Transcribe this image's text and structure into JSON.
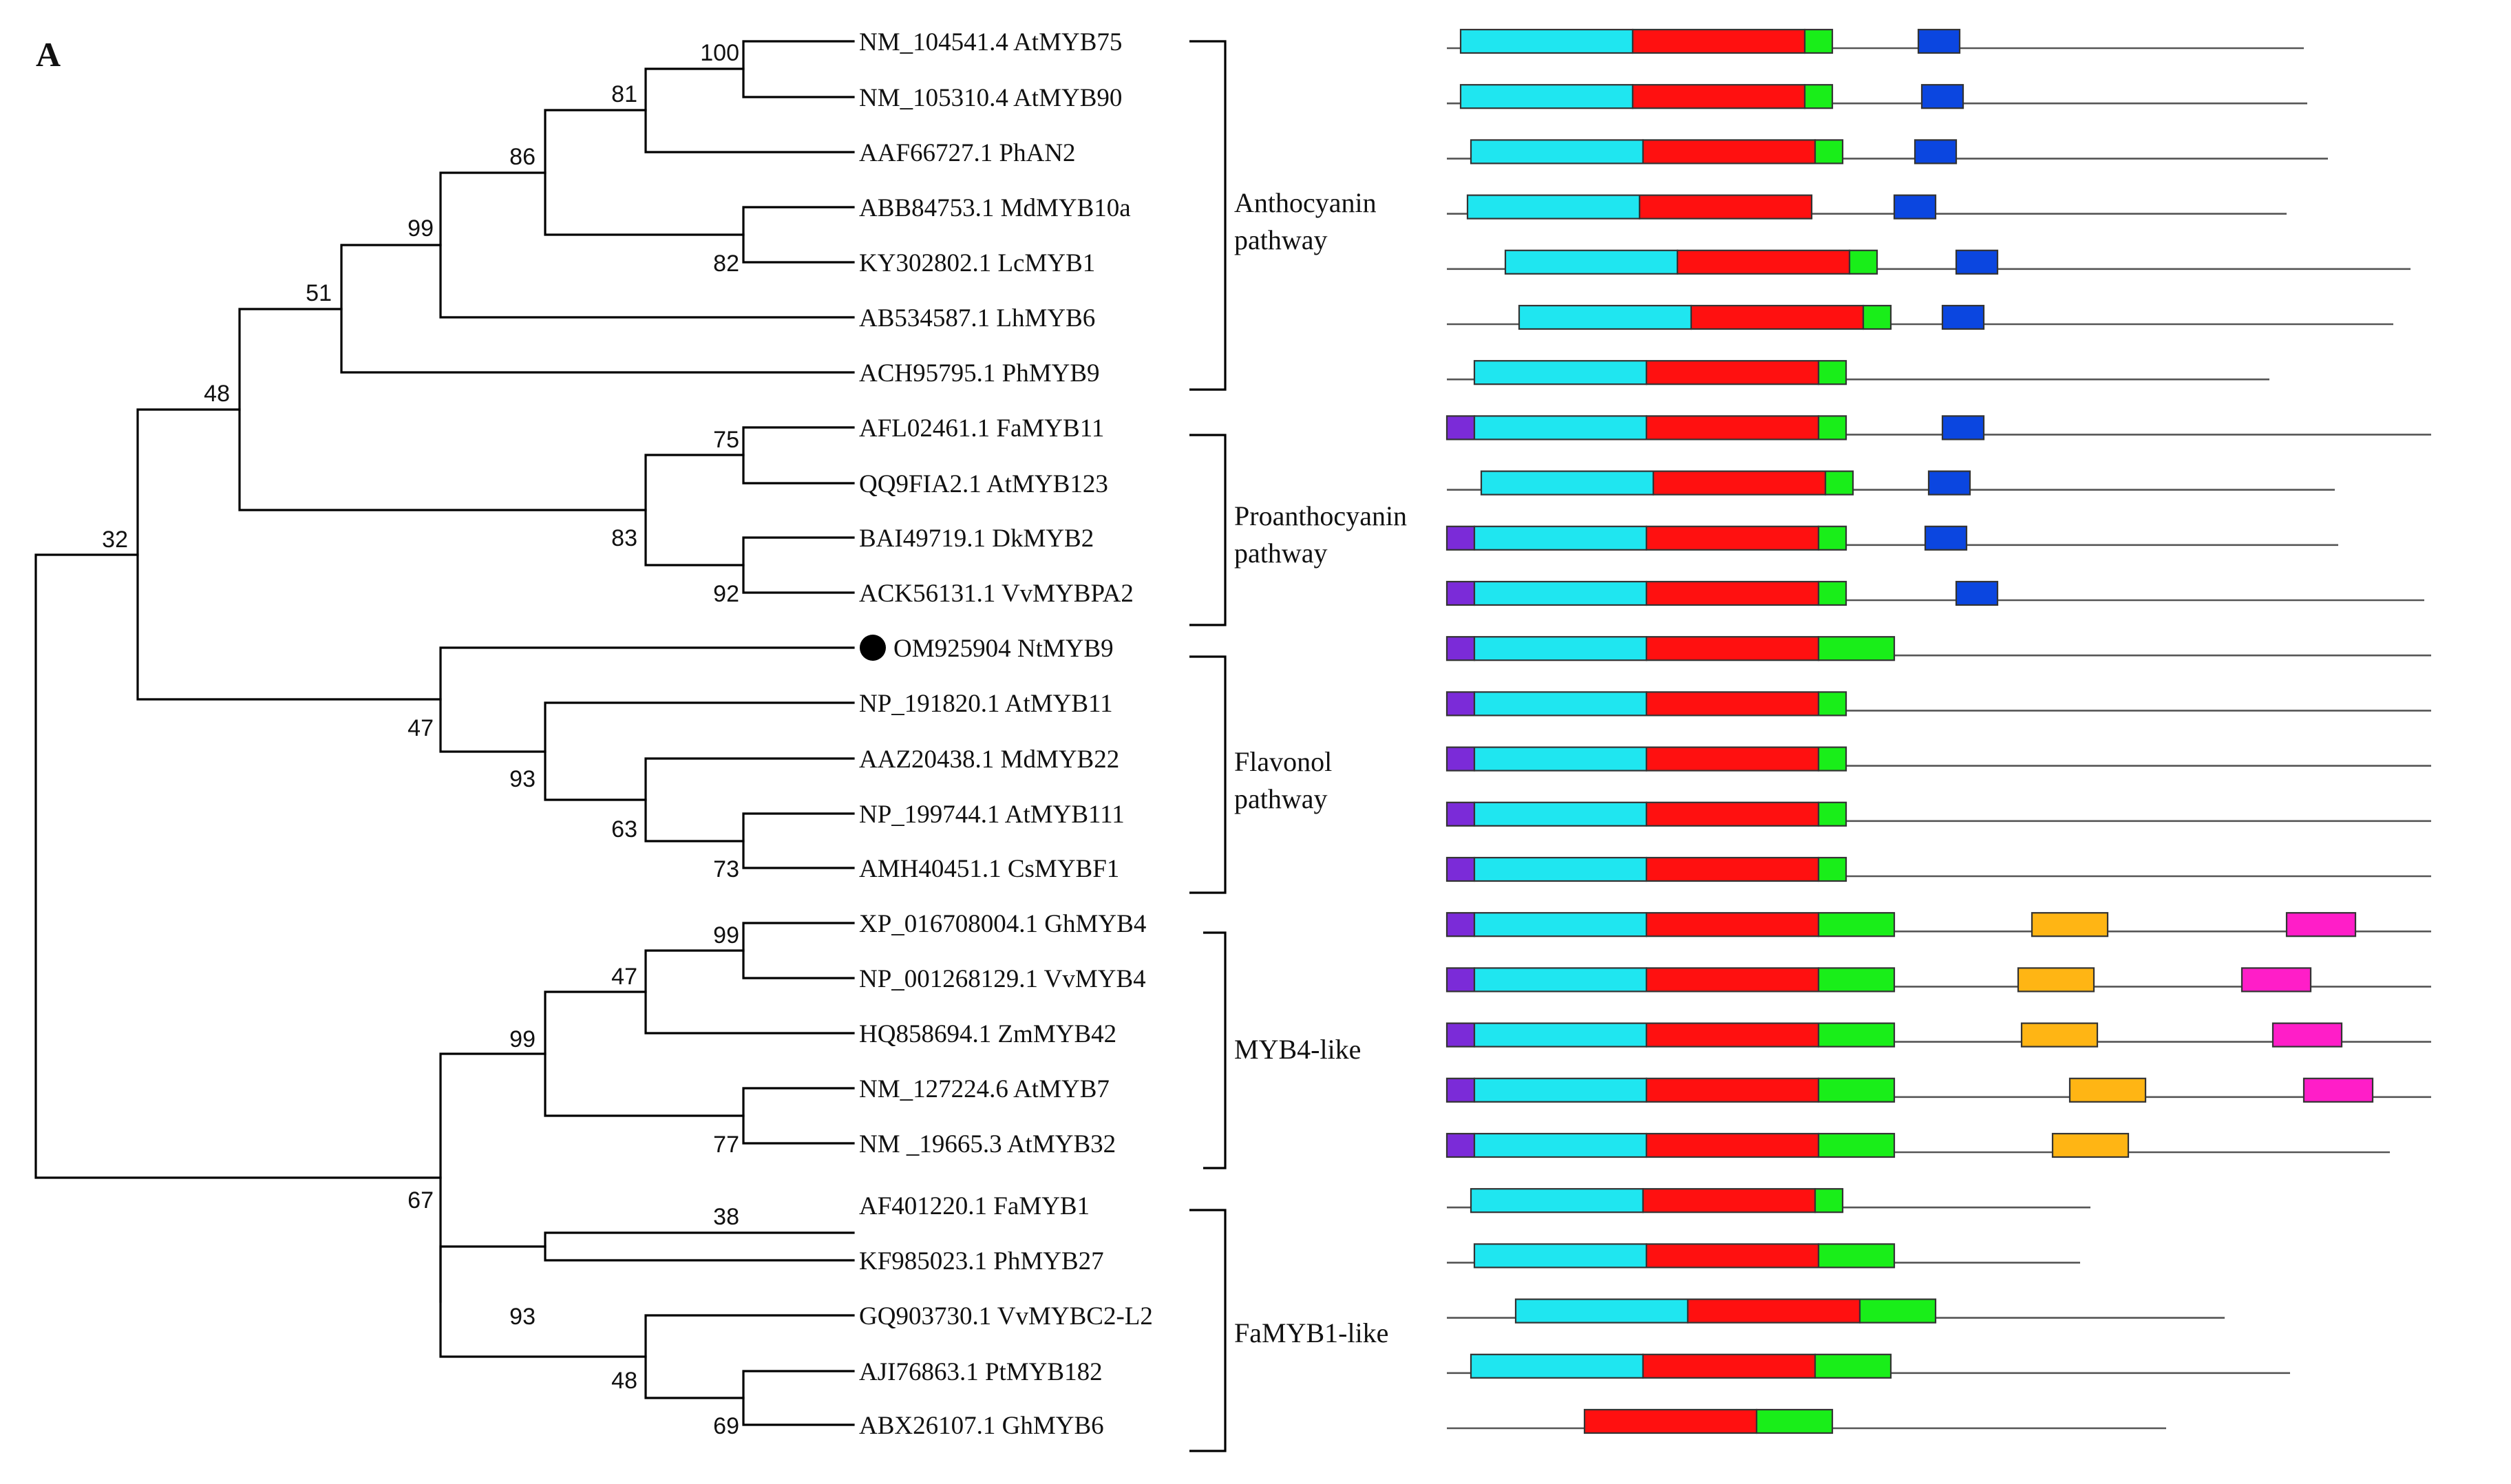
{
  "panel_label": "A",
  "colors": {
    "tree": "#000000",
    "seq_line": "#555555",
    "purple": "#7b2bd8",
    "cyan": "#1fe6f0",
    "red": "#ff1010",
    "green": "#19ee19",
    "blue": "#0b46e0",
    "orange": "#ffb514",
    "magenta": "#ff1ec8",
    "marker": "#000000"
  },
  "leaves": [
    {
      "label": "NM_104541.4 AtMYB75",
      "marker": false
    },
    {
      "label": "NM_105310.4 AtMYB90",
      "marker": false
    },
    {
      "label": "AAF66727.1 PhAN2",
      "marker": false
    },
    {
      "label": "ABB84753.1 MdMYB10a",
      "marker": false
    },
    {
      "label": "KY302802.1 LcMYB1",
      "marker": false
    },
    {
      "label": "AB534587.1 LhMYB6",
      "marker": false
    },
    {
      "label": "ACH95795.1 PhMYB9",
      "marker": false
    },
    {
      "label": "AFL02461.1 FaMYB11",
      "marker": false
    },
    {
      "label": "QQ9FIA2.1 AtMYB123",
      "marker": false
    },
    {
      "label": "BAI49719.1 DkMYB2",
      "marker": false
    },
    {
      "label": "ACK56131.1 VvMYBPA2",
      "marker": false
    },
    {
      "label": "OM925904 NtMYB9",
      "marker": true
    },
    {
      "label": "NP_191820.1 AtMYB11",
      "marker": false
    },
    {
      "label": "AAZ20438.1 MdMYB22",
      "marker": false
    },
    {
      "label": "NP_199744.1 AtMYB111",
      "marker": false
    },
    {
      "label": "AMH40451.1 CsMYBF1",
      "marker": false
    },
    {
      "label": "XP_016708004.1 GhMYB4",
      "marker": false
    },
    {
      "label": "NP_001268129.1 VvMYB4",
      "marker": false
    },
    {
      "label": "HQ858694.1 ZmMYB42",
      "marker": false
    },
    {
      "label": "NM_127224.6 AtMYB7",
      "marker": false
    },
    {
      "label": "NM _19665.3 AtMYB32",
      "marker": false
    },
    {
      "label": "AF401220.1 FaMYB1",
      "marker": false
    },
    {
      "label": "KF985023.1 PhMYB27",
      "marker": false
    },
    {
      "label": "GQ903730.1 VvMYBC2-L2",
      "marker": false
    },
    {
      "label": "AJI76863.1 PtMYB182",
      "marker": false
    },
    {
      "label": "ABX26107.1 GhMYB6",
      "marker": false
    }
  ],
  "bootstrap_values": [
    "100",
    "81",
    "86",
    "82",
    "99",
    "51",
    "48",
    "75",
    "83",
    "92",
    "32",
    "47",
    "93",
    "63",
    "73",
    "99",
    "47",
    "99",
    "77",
    "67",
    "38",
    "93",
    "48",
    "69"
  ],
  "groups": [
    {
      "lines": [
        "Anthocyanin",
        "pathway"
      ]
    },
    {
      "lines": [
        "Proanthocyanin",
        "pathway"
      ]
    },
    {
      "lines": [
        "Flavonol",
        "pathway"
      ]
    },
    {
      "lines": [
        "MYB4-like"
      ]
    },
    {
      "lines": [
        "FaMYB1-like"
      ]
    }
  ],
  "domain_legend_note": "",
  "domains": [
    {
      "name": "NM_104541.4 AtMYB75",
      "seq": [
        0,
        1245
      ],
      "boxes": [
        [
          "cyan",
          20,
          270
        ],
        [
          "red",
          270,
          520
        ],
        [
          "green",
          520,
          560
        ],
        [
          "blue",
          685,
          745
        ]
      ]
    },
    {
      "name": "NM_105310.4 AtMYB90",
      "seq": [
        0,
        1250
      ],
      "boxes": [
        [
          "cyan",
          20,
          270
        ],
        [
          "red",
          270,
          520
        ],
        [
          "green",
          520,
          560
        ],
        [
          "blue",
          690,
          750
        ]
      ]
    },
    {
      "name": "AAF66727.1 PhAN2",
      "seq": [
        0,
        1280
      ],
      "boxes": [
        [
          "cyan",
          35,
          285
        ],
        [
          "red",
          285,
          535
        ],
        [
          "green",
          535,
          575
        ],
        [
          "blue",
          680,
          740
        ]
      ]
    },
    {
      "name": "ABB84753.1 MdMYB10a",
      "seq": [
        0,
        1220
      ],
      "boxes": [
        [
          "cyan",
          30,
          280
        ],
        [
          "red",
          280,
          530
        ],
        [
          "blue",
          650,
          710
        ]
      ]
    },
    {
      "name": "KY302802.1 LcMYB1",
      "seq": [
        0,
        1400
      ],
      "boxes": [
        [
          "cyan",
          85,
          335
        ],
        [
          "red",
          335,
          585
        ],
        [
          "green",
          585,
          625
        ],
        [
          "blue",
          740,
          800
        ]
      ]
    },
    {
      "name": "AB534587.1 LhMYB6",
      "seq": [
        0,
        1375
      ],
      "boxes": [
        [
          "cyan",
          105,
          355
        ],
        [
          "red",
          355,
          605
        ],
        [
          "green",
          605,
          645
        ],
        [
          "blue",
          720,
          780
        ]
      ]
    },
    {
      "name": "ACH95795.1 PhMYB9",
      "seq": [
        0,
        1195
      ],
      "boxes": [
        [
          "cyan",
          40,
          290
        ],
        [
          "red",
          290,
          540
        ],
        [
          "green",
          540,
          580
        ]
      ]
    },
    {
      "name": "AFL02461.1 FaMYB11",
      "seq": [
        0,
        1430
      ],
      "boxes": [
        [
          "purple",
          0,
          40
        ],
        [
          "cyan",
          40,
          290
        ],
        [
          "red",
          290,
          540
        ],
        [
          "green",
          540,
          580
        ],
        [
          "blue",
          720,
          780
        ]
      ]
    },
    {
      "name": "QQ9FIA2.1 AtMYB123",
      "seq": [
        0,
        1290
      ],
      "boxes": [
        [
          "cyan",
          50,
          300
        ],
        [
          "red",
          300,
          550
        ],
        [
          "green",
          550,
          590
        ],
        [
          "blue",
          700,
          760
        ]
      ]
    },
    {
      "name": "BAI49719.1 DkMYB2",
      "seq": [
        0,
        1295
      ],
      "boxes": [
        [
          "purple",
          0,
          40
        ],
        [
          "cyan",
          40,
          290
        ],
        [
          "red",
          290,
          540
        ],
        [
          "green",
          540,
          580
        ],
        [
          "blue",
          695,
          755
        ]
      ]
    },
    {
      "name": "ACK56131.1 VvMYBPA2",
      "seq": [
        0,
        1420
      ],
      "boxes": [
        [
          "purple",
          0,
          40
        ],
        [
          "cyan",
          40,
          290
        ],
        [
          "red",
          290,
          540
        ],
        [
          "green",
          540,
          580
        ],
        [
          "blue",
          740,
          800
        ]
      ]
    },
    {
      "name": "OM925904 NtMYB9",
      "seq": [
        0,
        1430
      ],
      "boxes": [
        [
          "purple",
          0,
          40
        ],
        [
          "cyan",
          40,
          290
        ],
        [
          "red",
          290,
          540
        ],
        [
          "green",
          540,
          650
        ]
      ]
    },
    {
      "name": "NP_191820.1 AtMYB11",
      "seq": [
        0,
        1430
      ],
      "boxes": [
        [
          "purple",
          0,
          40
        ],
        [
          "cyan",
          40,
          290
        ],
        [
          "red",
          290,
          540
        ],
        [
          "green",
          540,
          580
        ]
      ]
    },
    {
      "name": "AAZ20438.1 MdMYB22",
      "seq": [
        0,
        1430
      ],
      "boxes": [
        [
          "purple",
          0,
          40
        ],
        [
          "cyan",
          40,
          290
        ],
        [
          "red",
          290,
          540
        ],
        [
          "green",
          540,
          580
        ]
      ]
    },
    {
      "name": "NP_199744.1 AtMYB111",
      "seq": [
        0,
        1430
      ],
      "boxes": [
        [
          "purple",
          0,
          40
        ],
        [
          "cyan",
          40,
          290
        ],
        [
          "red",
          290,
          540
        ],
        [
          "green",
          540,
          580
        ]
      ]
    },
    {
      "name": "AMH40451.1 CsMYBF1",
      "seq": [
        0,
        1430
      ],
      "boxes": [
        [
          "purple",
          0,
          40
        ],
        [
          "cyan",
          40,
          290
        ],
        [
          "red",
          290,
          540
        ],
        [
          "green",
          540,
          580
        ]
      ]
    },
    {
      "name": "XP_016708004.1 GhMYB4",
      "seq": [
        0,
        1430
      ],
      "boxes": [
        [
          "purple",
          0,
          40
        ],
        [
          "cyan",
          40,
          290
        ],
        [
          "red",
          290,
          540
        ],
        [
          "green",
          540,
          650
        ],
        [
          "orange",
          850,
          960
        ],
        [
          "magenta",
          1220,
          1320
        ]
      ]
    },
    {
      "name": "NP_001268129.1 VvMYB4",
      "seq": [
        0,
        1430
      ],
      "boxes": [
        [
          "purple",
          0,
          40
        ],
        [
          "cyan",
          40,
          290
        ],
        [
          "red",
          290,
          540
        ],
        [
          "green",
          540,
          650
        ],
        [
          "orange",
          830,
          940
        ],
        [
          "magenta",
          1155,
          1255
        ]
      ]
    },
    {
      "name": "HQ858694.1 ZmMYB42",
      "seq": [
        0,
        1430
      ],
      "boxes": [
        [
          "purple",
          0,
          40
        ],
        [
          "cyan",
          40,
          290
        ],
        [
          "red",
          290,
          540
        ],
        [
          "green",
          540,
          650
        ],
        [
          "orange",
          835,
          945
        ],
        [
          "magenta",
          1200,
          1300
        ]
      ]
    },
    {
      "name": "NM_127224.6 AtMYB7",
      "seq": [
        0,
        1430
      ],
      "boxes": [
        [
          "purple",
          0,
          40
        ],
        [
          "cyan",
          40,
          290
        ],
        [
          "red",
          290,
          540
        ],
        [
          "green",
          540,
          650
        ],
        [
          "orange",
          905,
          1015
        ],
        [
          "magenta",
          1245,
          1345
        ]
      ]
    },
    {
      "name": "NM _19665.3 AtMYB32",
      "seq": [
        0,
        1370
      ],
      "boxes": [
        [
          "purple",
          0,
          40
        ],
        [
          "cyan",
          40,
          290
        ],
        [
          "red",
          290,
          540
        ],
        [
          "green",
          540,
          650
        ],
        [
          "orange",
          880,
          990
        ]
      ]
    },
    {
      "name": "AF401220.1 FaMYB1",
      "seq": [
        0,
        935
      ],
      "boxes": [
        [
          "cyan",
          35,
          285
        ],
        [
          "red",
          285,
          535
        ],
        [
          "green",
          535,
          575
        ]
      ]
    },
    {
      "name": "KF985023.1 PhMYB27",
      "seq": [
        0,
        920
      ],
      "boxes": [
        [
          "cyan",
          40,
          290
        ],
        [
          "red",
          290,
          540
        ],
        [
          "green",
          540,
          650
        ]
      ]
    },
    {
      "name": "GQ903730.1 VvMYBC2-L2",
      "seq": [
        0,
        1130
      ],
      "boxes": [
        [
          "cyan",
          100,
          350
        ],
        [
          "red",
          350,
          600
        ],
        [
          "green",
          600,
          710
        ]
      ]
    },
    {
      "name": "AJI76863.1 PtMYB182",
      "seq": [
        0,
        1225
      ],
      "boxes": [
        [
          "cyan",
          35,
          285
        ],
        [
          "red",
          285,
          535
        ],
        [
          "green",
          535,
          645
        ]
      ]
    },
    {
      "name": "ABX26107.1 GhMYB6",
      "seq": [
        0,
        1045
      ],
      "boxes": [
        [
          "red",
          200,
          450
        ],
        [
          "green",
          450,
          560
        ]
      ]
    }
  ]
}
